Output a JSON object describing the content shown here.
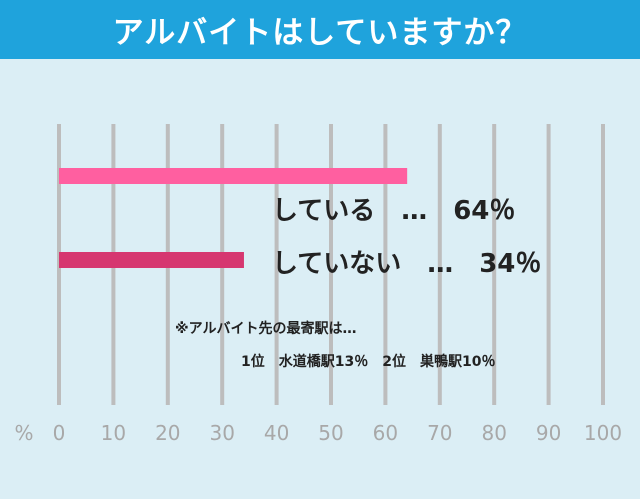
{
  "title": "アルバイトはしていますか？",
  "colors": {
    "header_bg": "#1fa3dc",
    "page_bg": "#dbeef5",
    "grid": "#bdbdbd",
    "axis_text": "#a8a8a8"
  },
  "chart_data": {
    "type": "bar",
    "orientation": "horizontal",
    "title": "アルバイトはしていますか？",
    "xlabel": "%",
    "xlim": [
      0,
      100
    ],
    "ticks": [
      "0",
      "10",
      "20",
      "30",
      "40",
      "50",
      "60",
      "70",
      "80",
      "90",
      "100"
    ],
    "grid": true,
    "categories": [
      "している",
      "していない"
    ],
    "values": [
      64,
      34
    ],
    "bar_colors": [
      "#ff5fa0",
      "#d63770"
    ],
    "data_labels": [
      "している　…　64％",
      "していない　…　34％"
    ],
    "annotations": [
      "※アルバイト先の最寄駅は…",
      "1位　水道橋駅13％　2位　巣鴨駅10％"
    ]
  }
}
